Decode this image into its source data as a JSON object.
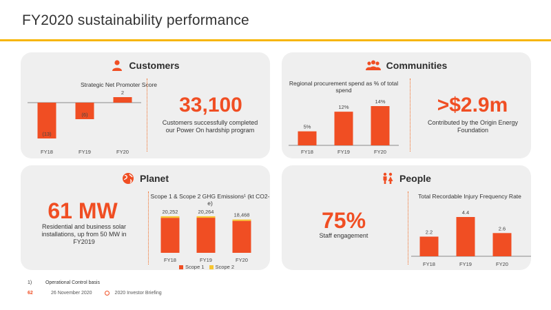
{
  "title": "FY2020 sustainability performance",
  "colors": {
    "accent": "#f04e23",
    "scope2": "#f7c531",
    "rule": "#f7b500",
    "panel": "#efefef"
  },
  "customers": {
    "heading": "Customers",
    "icon": "person-icon",
    "chart_title": "Strategic Net Promoter Score",
    "big_value": "33,100",
    "description": "Customers successfully completed our Power On hardship program"
  },
  "communities": {
    "heading": "Communities",
    "icon": "group-icon",
    "chart_title": "Regional procurement spend as % of total spend",
    "big_value": ">$2.9m",
    "description": "Contributed by the Origin Energy Foundation"
  },
  "planet": {
    "heading": "Planet",
    "icon": "globe-icon",
    "big_value": "61 MW",
    "description": "Residential and business solar installations, up from 50 MW in FY2019",
    "chart_title": "Scope 1 & Scope 2 GHG Emissions¹ (kt CO2-e)"
  },
  "people": {
    "heading": "People",
    "icon": "people-icon",
    "big_value": "75%",
    "description": "Staff engagement",
    "chart_title": "Total Recordable Injury Frequency Rate"
  },
  "chart_data": [
    {
      "type": "bar",
      "title": "Strategic Net Promoter Score",
      "categories": [
        "FY18",
        "FY19",
        "FY20"
      ],
      "values": [
        -13,
        -6,
        2
      ],
      "labels": [
        "(13)",
        "(6)",
        "2"
      ]
    },
    {
      "type": "bar",
      "title": "Regional procurement spend as % of total spend",
      "categories": [
        "FY18",
        "FY19",
        "FY20"
      ],
      "values": [
        5,
        12,
        14
      ],
      "labels": [
        "5%",
        "12%",
        "14%"
      ]
    },
    {
      "type": "bar",
      "title": "Scope 1 & Scope 2 GHG Emissions¹ (kt CO2-e)",
      "categories": [
        "FY18",
        "FY19",
        "FY20"
      ],
      "series": [
        {
          "name": "Scope 1",
          "values": [
            19400,
            19450,
            17700
          ]
        },
        {
          "name": "Scope 2",
          "values": [
            852,
            814,
            768
          ]
        }
      ],
      "totals": [
        "20,252",
        "20,264",
        "18,468"
      ],
      "stacked": true,
      "legend": "bottom"
    },
    {
      "type": "bar",
      "title": "Total Recordable Injury Frequency Rate",
      "categories": [
        "FY18",
        "FY19",
        "FY20"
      ],
      "values": [
        2.2,
        4.4,
        2.6
      ],
      "labels": [
        "2.2",
        "4.4",
        "2.6"
      ]
    }
  ],
  "footer": {
    "footnote_number": "1)",
    "footnote_text": "Operational Control basis",
    "page": "62",
    "date": "26 November 2020",
    "event": "2020 Investor Briefing"
  }
}
